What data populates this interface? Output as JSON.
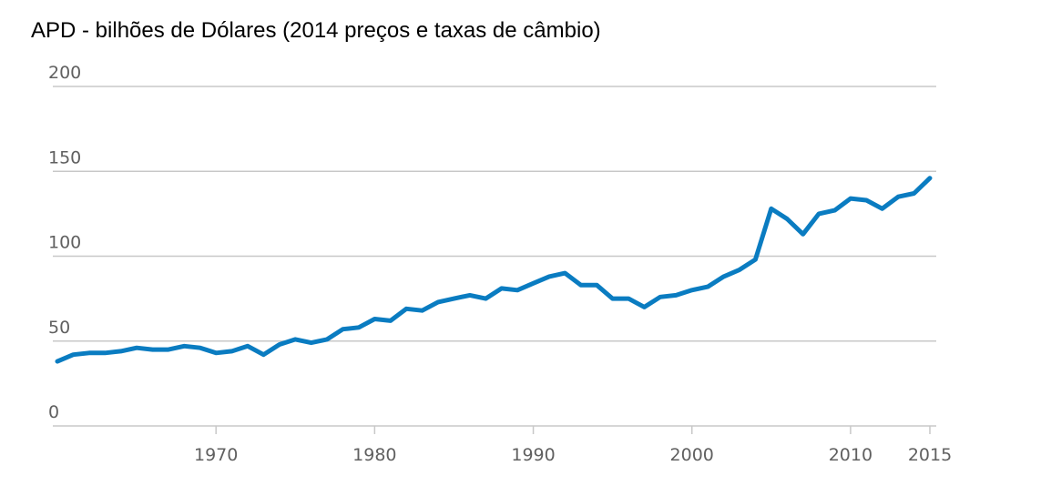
{
  "chart_data": {
    "type": "line",
    "title": "APD - bilhões de Dólares (2014 preços e taxas de câmbio)",
    "xlabel": "",
    "ylabel": "",
    "xlim": [
      1960,
      2015
    ],
    "ylim": [
      0,
      200
    ],
    "yticks": [
      0,
      50,
      100,
      150,
      200
    ],
    "xticks": [
      1970,
      1980,
      1990,
      2000,
      2010,
      2015
    ],
    "ytick_labels": [
      "0",
      "50",
      "100",
      "150",
      "200"
    ],
    "xtick_labels": [
      "1970",
      "1980",
      "1990",
      "2000",
      "2010",
      "2015"
    ],
    "grid": "horizontal",
    "line_color": "#0a7cc1",
    "series": [
      {
        "x": [
          1960,
          1961,
          1962,
          1963,
          1964,
          1965,
          1966,
          1967,
          1968,
          1969,
          1970,
          1971,
          1972,
          1973,
          1974,
          1975,
          1976,
          1977,
          1978,
          1979,
          1980,
          1981,
          1982,
          1983,
          1984,
          1985,
          1986,
          1987,
          1988,
          1989,
          1990,
          1991,
          1992,
          1993,
          1994,
          1995,
          1996,
          1997,
          1998,
          1999,
          2000,
          2001,
          2002,
          2003,
          2004,
          2005,
          2006,
          2007,
          2008,
          2009,
          2010,
          2011,
          2012,
          2013,
          2014,
          2015
        ],
        "values": [
          38,
          42,
          43,
          43,
          44,
          46,
          45,
          45,
          47,
          46,
          43,
          44,
          47,
          42,
          48,
          51,
          49,
          51,
          57,
          58,
          63,
          62,
          69,
          68,
          73,
          75,
          77,
          75,
          81,
          80,
          84,
          88,
          90,
          83,
          83,
          75,
          75,
          70,
          76,
          77,
          80,
          82,
          88,
          92,
          98,
          128,
          122,
          113,
          125,
          127,
          134,
          133,
          128,
          135,
          137,
          146
        ]
      }
    ]
  }
}
